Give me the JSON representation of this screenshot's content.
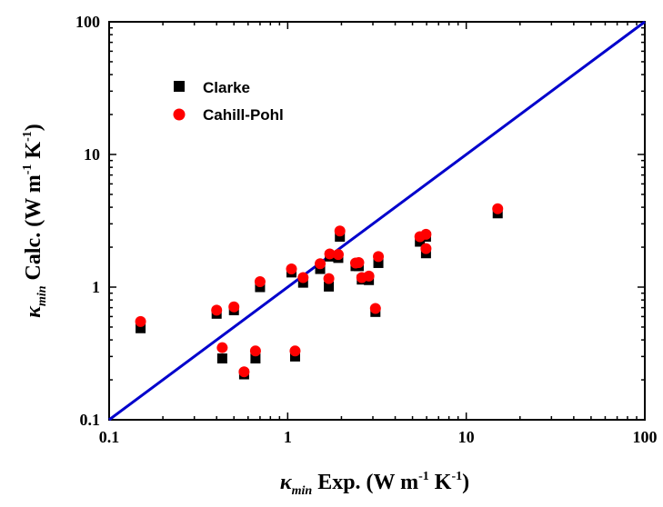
{
  "chart_data": {
    "type": "scatter",
    "xscale": "log",
    "yscale": "log",
    "xlim": [
      0.1,
      100
    ],
    "ylim": [
      0.1,
      100
    ],
    "x_tick_labels": [
      "0.1",
      "1",
      "10",
      "100"
    ],
    "y_tick_labels": [
      "0.1",
      "1",
      "10",
      "100"
    ],
    "xlabel": {
      "symbol": "κ",
      "subscript": "min",
      "text": " Exp. (W m",
      "exp1": "-1",
      "text2": " K",
      "exp2": "-1",
      "close": ")"
    },
    "ylabel": {
      "symbol": "κ",
      "subscript": "min",
      "text": " Calc. (W m",
      "exp1": "-1",
      "text2": " K",
      "exp2": "-1",
      "close": ")"
    },
    "legend_position": "upper-left",
    "colors": {
      "clarke": "#000000",
      "cahill": "#ff0000",
      "line": "#0000cc"
    },
    "reference_line": {
      "x": [
        0.1,
        100
      ],
      "y": [
        0.1,
        100
      ]
    },
    "series": [
      {
        "name": "Clarke",
        "marker": "square",
        "x": [
          0.15,
          0.4,
          0.43,
          0.5,
          0.57,
          0.66,
          0.7,
          1.05,
          1.1,
          1.22,
          1.52,
          1.7,
          1.72,
          1.92,
          1.96,
          2.4,
          2.5,
          2.6,
          2.85,
          3.1,
          3.22,
          5.5,
          5.95,
          5.95,
          15.0
        ],
        "y": [
          0.49,
          0.63,
          0.29,
          0.67,
          0.22,
          0.29,
          1.0,
          1.29,
          0.3,
          1.08,
          1.37,
          1.01,
          1.7,
          1.66,
          2.4,
          1.44,
          1.44,
          1.14,
          1.13,
          0.65,
          1.52,
          2.2,
          2.4,
          1.8,
          3.6
        ]
      },
      {
        "name": "Cahill-Pohl",
        "marker": "circle",
        "x": [
          0.15,
          0.4,
          0.43,
          0.5,
          0.57,
          0.66,
          0.7,
          1.05,
          1.1,
          1.22,
          1.52,
          1.7,
          1.72,
          1.92,
          1.96,
          2.4,
          2.5,
          2.6,
          2.85,
          3.1,
          3.22,
          5.5,
          5.95,
          5.95,
          15.0
        ],
        "y": [
          0.55,
          0.67,
          0.35,
          0.71,
          0.23,
          0.33,
          1.1,
          1.37,
          0.33,
          1.18,
          1.5,
          1.16,
          1.78,
          1.76,
          2.65,
          1.52,
          1.53,
          1.18,
          1.21,
          0.69,
          1.7,
          2.4,
          2.5,
          1.95,
          3.9
        ]
      }
    ]
  }
}
